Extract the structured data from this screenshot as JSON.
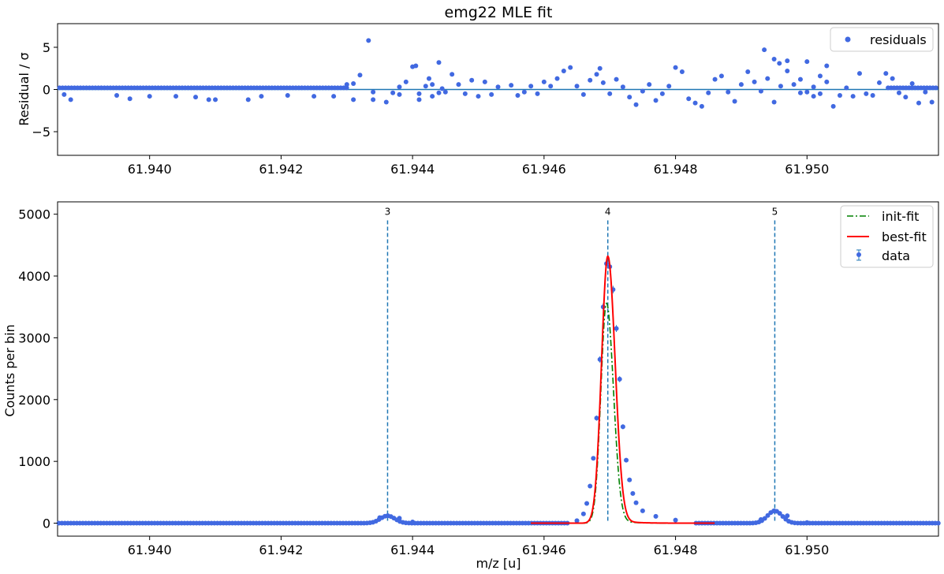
{
  "chart_data": [
    {
      "type": "scatter",
      "title": "emg22 MLE fit",
      "xlabel": "",
      "ylabel": "Residual / σ",
      "xlim": [
        61.9386,
        61.952
      ],
      "ylim": [
        -7.8,
        7.8
      ],
      "x_ticks": [
        "61.940",
        "61.942",
        "61.944",
        "61.946",
        "61.948",
        "61.950"
      ],
      "x_tick_values": [
        61.94,
        61.942,
        61.944,
        61.946,
        61.948,
        61.95
      ],
      "y_ticks": [
        "−5",
        "0",
        "5"
      ],
      "y_tick_values": [
        -5,
        0,
        5
      ],
      "legend": [
        "residuals"
      ],
      "legend_position": "top-right",
      "zero_line": 0,
      "colors": {
        "points": "#4169e1",
        "zero_line": "#1f77b4"
      },
      "series": [
        {
          "name": "residuals",
          "points": [
            [
              61.9387,
              -0.6
            ],
            [
              61.9388,
              -1.2
            ],
            [
              61.9395,
              -0.7
            ],
            [
              61.9397,
              -1.1
            ],
            [
              61.94,
              -0.8
            ],
            [
              61.9404,
              -0.8
            ],
            [
              61.9407,
              -0.9
            ],
            [
              61.9409,
              -1.2
            ],
            [
              61.941,
              -1.2
            ],
            [
              61.9415,
              -1.2
            ],
            [
              61.9417,
              -0.8
            ],
            [
              61.9421,
              -0.7
            ],
            [
              61.9425,
              -0.8
            ],
            [
              61.9428,
              -0.8
            ],
            [
              61.9431,
              -1.2
            ],
            [
              61.9434,
              -1.2
            ],
            [
              61.9438,
              -0.6
            ],
            [
              61.9441,
              -1.2
            ],
            [
              61.9443,
              -0.8
            ],
            [
              61.9444,
              -0.4
            ],
            [
              61.943,
              0.6
            ],
            [
              61.9431,
              0.7
            ],
            [
              61.9432,
              1.7
            ],
            [
              61.94333,
              5.8
            ],
            [
              61.9434,
              -0.3
            ],
            [
              61.9436,
              -1.5
            ],
            [
              61.9437,
              -0.4
            ],
            [
              61.9438,
              0.3
            ],
            [
              61.9439,
              0.9
            ],
            [
              61.944,
              2.7
            ],
            [
              61.94405,
              2.8
            ],
            [
              61.9441,
              -0.5
            ],
            [
              61.9442,
              0.4
            ],
            [
              61.94425,
              1.3
            ],
            [
              61.9443,
              0.6
            ],
            [
              61.9444,
              3.2
            ],
            [
              61.94445,
              0.1
            ],
            [
              61.9445,
              -0.3
            ],
            [
              61.9446,
              1.8
            ],
            [
              61.9447,
              0.6
            ],
            [
              61.9448,
              -0.5
            ],
            [
              61.9449,
              1.1
            ],
            [
              61.945,
              -0.8
            ],
            [
              61.9451,
              0.9
            ],
            [
              61.9452,
              -0.6
            ],
            [
              61.9453,
              0.3
            ],
            [
              61.9455,
              0.5
            ],
            [
              61.9456,
              -0.7
            ],
            [
              61.9457,
              -0.3
            ],
            [
              61.9458,
              0.4
            ],
            [
              61.9459,
              -0.5
            ],
            [
              61.946,
              0.9
            ],
            [
              61.9461,
              0.4
            ],
            [
              61.9462,
              1.3
            ],
            [
              61.9463,
              2.2
            ],
            [
              61.9464,
              2.6
            ],
            [
              61.9465,
              0.4
            ],
            [
              61.9466,
              -0.6
            ],
            [
              61.9467,
              1.1
            ],
            [
              61.9468,
              1.8
            ],
            [
              61.94685,
              2.5
            ],
            [
              61.9469,
              0.8
            ],
            [
              61.947,
              -0.5
            ],
            [
              61.9471,
              1.2
            ],
            [
              61.9472,
              0.3
            ],
            [
              61.9473,
              -0.9
            ],
            [
              61.9474,
              -1.8
            ],
            [
              61.9475,
              -0.2
            ],
            [
              61.9476,
              0.6
            ],
            [
              61.9477,
              -1.3
            ],
            [
              61.9478,
              -0.5
            ],
            [
              61.9479,
              0.4
            ],
            [
              61.948,
              2.6
            ],
            [
              61.9481,
              2.1
            ],
            [
              61.9482,
              -1.1
            ],
            [
              61.9483,
              -1.6
            ],
            [
              61.9484,
              -2.0
            ],
            [
              61.9485,
              -0.4
            ],
            [
              61.9486,
              1.2
            ],
            [
              61.9487,
              1.6
            ],
            [
              61.9488,
              -0.3
            ],
            [
              61.9489,
              -1.4
            ],
            [
              61.949,
              0.6
            ],
            [
              61.9491,
              2.1
            ],
            [
              61.9492,
              0.9
            ],
            [
              61.9493,
              -0.2
            ],
            [
              61.9494,
              1.3
            ],
            [
              61.9495,
              -1.5
            ],
            [
              61.9496,
              0.4
            ],
            [
              61.9497,
              3.4
            ],
            [
              61.9498,
              0.6
            ],
            [
              61.9499,
              -0.4
            ],
            [
              61.95,
              3.3
            ],
            [
              61.9501,
              0.3
            ],
            [
              61.9502,
              1.6
            ],
            [
              61.9503,
              2.8
            ],
            [
              61.94935,
              4.7
            ],
            [
              61.9495,
              3.6
            ],
            [
              61.94958,
              3.1
            ],
            [
              61.9497,
              2.2
            ],
            [
              61.9499,
              1.2
            ],
            [
              61.95,
              -0.3
            ],
            [
              61.9501,
              -0.8
            ],
            [
              61.9502,
              -0.5
            ],
            [
              61.9503,
              0.9
            ],
            [
              61.9504,
              -2.0
            ],
            [
              61.9505,
              -0.7
            ],
            [
              61.9506,
              0.2
            ],
            [
              61.9507,
              -0.8
            ],
            [
              61.9508,
              1.9
            ],
            [
              61.9509,
              -0.5
            ],
            [
              61.951,
              -0.7
            ],
            [
              61.9511,
              0.8
            ],
            [
              61.9512,
              1.9
            ],
            [
              61.9513,
              1.3
            ],
            [
              61.9514,
              -0.4
            ],
            [
              61.9515,
              -0.9
            ],
            [
              61.9516,
              0.7
            ],
            [
              61.9517,
              -1.6
            ],
            [
              61.9518,
              -0.3
            ],
            [
              61.9519,
              -1.5
            ]
          ]
        }
      ]
    },
    {
      "type": "line",
      "title": "",
      "xlabel": "m/z [u]",
      "ylabel": "Counts per bin",
      "xlim": [
        61.9386,
        61.952
      ],
      "ylim": [
        -210,
        5200
      ],
      "x_ticks": [
        "61.940",
        "61.942",
        "61.944",
        "61.946",
        "61.948",
        "61.950"
      ],
      "x_tick_values": [
        61.94,
        61.942,
        61.944,
        61.946,
        61.948,
        61.95
      ],
      "y_ticks": [
        "0",
        "1000",
        "2000",
        "3000",
        "4000",
        "5000"
      ],
      "y_tick_values": [
        0,
        1000,
        2000,
        3000,
        4000,
        5000
      ],
      "legend": [
        "init-fit",
        "best-fit",
        "data"
      ],
      "legend_position": "top-right",
      "colors": {
        "data": "#4169e1",
        "init_fit": "#008000",
        "best_fit": "#ff0000",
        "markers": "#1f77b4"
      },
      "peak_markers": [
        {
          "label": "3",
          "x": 61.94362
        },
        {
          "label": "4",
          "x": 61.94697
        },
        {
          "label": "5",
          "x": 61.94951
        }
      ],
      "series": [
        {
          "name": "data",
          "points": [
            [
              61.9435,
              90
            ],
            [
              61.94362,
              120
            ],
            [
              61.9438,
              80
            ],
            [
              61.944,
              20
            ],
            [
              61.9465,
              40
            ],
            [
              61.9466,
              150
            ],
            [
              61.94665,
              320
            ],
            [
              61.9467,
              600
            ],
            [
              61.94675,
              1050
            ],
            [
              61.9468,
              1700
            ],
            [
              61.94685,
              2650
            ],
            [
              61.9469,
              3500
            ],
            [
              61.94695,
              4200
            ],
            [
              61.947,
              4150
            ],
            [
              61.94705,
              3780
            ],
            [
              61.9471,
              3150
            ],
            [
              61.94715,
              2330
            ],
            [
              61.9472,
              1560
            ],
            [
              61.94725,
              1020
            ],
            [
              61.9473,
              700
            ],
            [
              61.94735,
              480
            ],
            [
              61.9474,
              330
            ],
            [
              61.9475,
              200
            ],
            [
              61.9477,
              110
            ],
            [
              61.948,
              50
            ],
            [
              61.9493,
              60
            ],
            [
              61.9495,
              200
            ],
            [
              61.9497,
              120
            ],
            [
              61.95,
              10
            ]
          ]
        },
        {
          "name": "best-fit",
          "peak": {
            "x": 61.94697,
            "amplitude": 4320
          }
        },
        {
          "name": "init-fit",
          "peak": {
            "x": 61.94695,
            "amplitude": 3560
          }
        }
      ]
    }
  ]
}
